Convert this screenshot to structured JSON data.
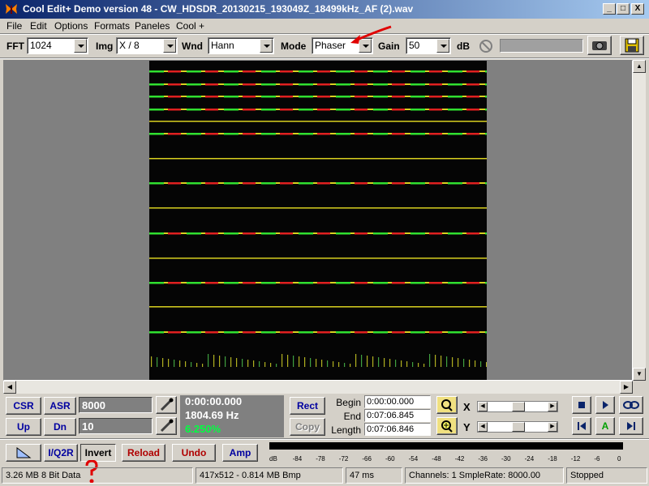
{
  "window": {
    "title": "Cool Edit+  Demo version 48 - CW_HDSDR_20130215_193049Z_18499kHz_AF (2).wav",
    "buttons": {
      "minimize": "_",
      "maximize": "□",
      "close": "X"
    }
  },
  "menu": [
    "File",
    "Edit",
    "Options",
    "Formats",
    "Paneles",
    "Cool +"
  ],
  "toolbar": {
    "fft_label": "FFT",
    "fft_value": "1024",
    "img_label": "Img",
    "img_value": "X / 8",
    "wnd_label": "Wnd",
    "wnd_value": "Hann",
    "mode_label": "Mode",
    "mode_value": "Phaser",
    "gain_label": "Gain",
    "gain_value": "50",
    "gain_unit": "dB"
  },
  "controls": {
    "csr": "CSR",
    "asr": "ASR",
    "up": "Up",
    "dn": "Dn",
    "field1": "8000",
    "field2": "10",
    "time": "0:00:00.000",
    "freq": "1804.69 Hz",
    "percent": "6.250%",
    "rect": "Rect",
    "copy": "Copy",
    "begin_label": "Begin",
    "begin_value": "0:00:00.000",
    "end_label": "End",
    "end_value": "0:07:06.845",
    "length_label": "Length",
    "length_value": "0:07:06.846",
    "x_label": "X",
    "y_label": "Y"
  },
  "bottom_buttons": {
    "iq": "I/Q2R",
    "invert": "Invert",
    "reload": "Reload",
    "undo": "Undo",
    "amp": "Amp"
  },
  "meter": {
    "ticks": [
      "dB",
      "-84",
      "-78",
      "-72",
      "-66",
      "-60",
      "-54",
      "-48",
      "-42",
      "-36",
      "-30",
      "-24",
      "-18",
      "-12",
      "-6",
      "0"
    ]
  },
  "status": {
    "size": "3.26 MB 8 Bit Data",
    "dims": "417x512 - 0.814 MB Bmp",
    "ms": "47 ms",
    "channels": "Channels: 1  SmpleRate: 8000.00",
    "state": "Stopped"
  },
  "colors": {
    "title_start": "#0a246a",
    "title_end": "#a6caf0",
    "annotation": "#e00000",
    "time_green": "#00a000",
    "face": "#d4d0c8"
  }
}
